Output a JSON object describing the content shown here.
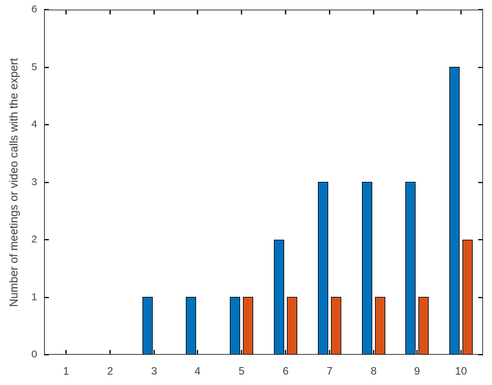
{
  "chart_data": {
    "type": "bar",
    "title": "",
    "xlabel": "",
    "ylabel": "Number of meetings or video calls with the expert",
    "categories": [
      "1",
      "2",
      "3",
      "4",
      "5",
      "6",
      "7",
      "8",
      "9",
      "10"
    ],
    "series": [
      {
        "name": "series-1-blue",
        "color": "#0072BD",
        "values": [
          0,
          0,
          1,
          1,
          1,
          2,
          3,
          3,
          3,
          5
        ]
      },
      {
        "name": "series-2-orange",
        "color": "#D95319",
        "values": [
          0,
          0,
          0,
          0,
          1,
          1,
          1,
          1,
          1,
          2
        ]
      }
    ],
    "ylim": [
      0,
      6
    ],
    "yticks": [
      "0",
      "1",
      "2",
      "3",
      "4",
      "5",
      "6"
    ],
    "grid": false,
    "legend": null,
    "box": true,
    "tick_direction": "in",
    "axis_color": "#262626",
    "bar_edge_color": "#101010",
    "background_color": "#ffffff"
  }
}
